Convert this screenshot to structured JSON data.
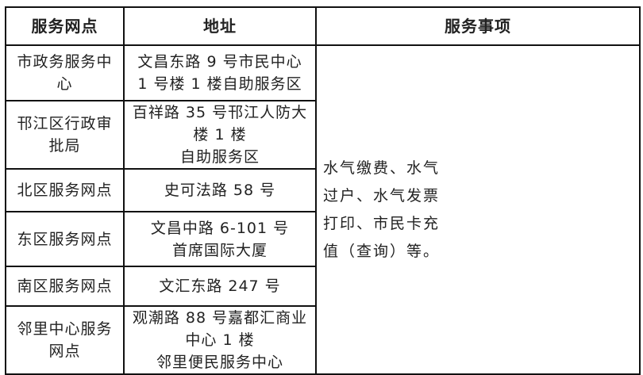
{
  "headers": [
    "服务网点",
    "地址",
    "服务事项"
  ],
  "rows": [
    {
      "name": "市政务服务中心",
      "address": [
        "文昌东路 9 号市民中心",
        "1 号楼 1 楼自助服务区"
      ]
    },
    {
      "name": "邗江区行政审批局",
      "address": [
        "百祥路 35 号邗江人防大楼 1 楼",
        "自助服务区"
      ]
    },
    {
      "name": "北区服务网点",
      "address": [
        "史可法路 58 号"
      ]
    },
    {
      "name": "东区服务网点",
      "address": [
        "文昌中路 6-101 号",
        "首席国际大厦"
      ]
    },
    {
      "name": "南区服务网点",
      "address": [
        "文汇东路 247 号"
      ]
    },
    {
      "name": "邻里中心服务网点",
      "address": [
        "观潮路 88 号嘉都汇商业中心 1 楼",
        "邻里便民服务中心"
      ]
    }
  ],
  "services": [
    "水气缴费、水气",
    "过户、水气发票",
    "打印、市民卡充",
    "值（查询）等。"
  ]
}
